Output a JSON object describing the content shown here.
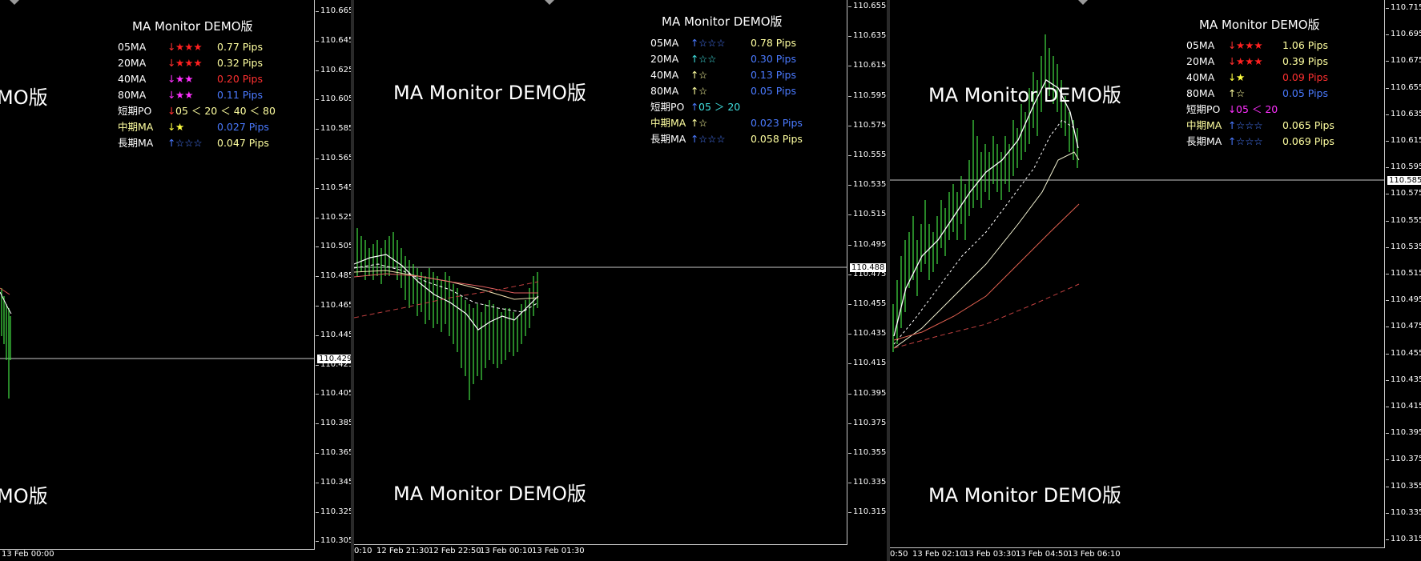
{
  "watermark_text": "MA Monitor DEMO版",
  "watermark_partial": "MO版",
  "panels": [
    {
      "title": "MA Monitor DEMO版",
      "rows": [
        {
          "label": "05MA",
          "arrow": "↓",
          "stars": "★★★",
          "value": "0.77 Pips",
          "label_color": "#ffffff",
          "arrow_color": "#ff3030",
          "stars_color": "#ff2020",
          "value_color": "#ffffa0"
        },
        {
          "label": "20MA",
          "arrow": "↓",
          "stars": "★★★",
          "value": "0.32 Pips",
          "label_color": "#ffffff",
          "arrow_color": "#ff3030",
          "stars_color": "#ff2020",
          "value_color": "#ffffa0"
        },
        {
          "label": "40MA",
          "arrow": "↓",
          "stars": "★★",
          "value": "0.20 Pips",
          "label_color": "#ffffff",
          "arrow_color": "#ff30ff",
          "stars_color": "#ff30ff",
          "value_color": "#ff3030"
        },
        {
          "label": "80MA",
          "arrow": "↓",
          "stars": "★★",
          "value": "0.11 Pips",
          "label_color": "#ffffff",
          "arrow_color": "#ff30ff",
          "stars_color": "#ff30ff",
          "value_color": "#4a7aff"
        },
        {
          "label": "短期PO",
          "arrow": "↓",
          "stars": "05 ＜ 20 ＜ 40 ＜ 80",
          "value": "",
          "label_color": "#ffffff",
          "arrow_color": "#ff3030",
          "stars_color": "#ffffa0",
          "value_color": "#ffffff"
        },
        {
          "label": "中期MA",
          "arrow": "↓",
          "stars": "★",
          "value": "0.027 Pips",
          "label_color": "#ffffa0",
          "arrow_color": "#ffff40",
          "stars_color": "#ffff40",
          "value_color": "#4a7aff"
        },
        {
          "label": "長期MA",
          "arrow": "↑",
          "stars": "☆☆☆",
          "value": "0.047 Pips",
          "label_color": "#ffffff",
          "arrow_color": "#4a7aff",
          "stars_color": "#4a7aff",
          "value_color": "#ffffa0"
        }
      ],
      "y_ticks": [
        "110.665",
        "110.645",
        "110.625",
        "110.605",
        "110.585",
        "110.565",
        "110.545",
        "110.525",
        "110.505",
        "110.485",
        "110.465",
        "110.445",
        "110.425",
        "110.405",
        "110.385",
        "110.365",
        "110.345",
        "110.325",
        "110.305"
      ],
      "current_price": "110.429",
      "x_ticks": [
        "13 Feb 00:00"
      ]
    },
    {
      "title": "MA Monitor DEMO版",
      "rows": [
        {
          "label": "05MA",
          "arrow": "↑",
          "stars": "☆☆☆",
          "value": "0.78 Pips",
          "label_color": "#ffffff",
          "arrow_color": "#4a7aff",
          "stars_color": "#4a7aff",
          "value_color": "#ffffa0"
        },
        {
          "label": "20MA",
          "arrow": "↑",
          "stars": "☆☆",
          "value": "0.30 Pips",
          "label_color": "#ffffff",
          "arrow_color": "#40e0e0",
          "stars_color": "#40e0e0",
          "value_color": "#4a7aff"
        },
        {
          "label": "40MA",
          "arrow": "↑",
          "stars": "☆",
          "value": "0.13 Pips",
          "label_color": "#ffffff",
          "arrow_color": "#ffffa0",
          "stars_color": "#ffffa0",
          "value_color": "#4a7aff"
        },
        {
          "label": "80MA",
          "arrow": "↑",
          "stars": "☆",
          "value": "0.05 Pips",
          "label_color": "#ffffff",
          "arrow_color": "#ffffa0",
          "stars_color": "#ffffa0",
          "value_color": "#4a7aff"
        },
        {
          "label": "短期PO",
          "arrow": "↑",
          "stars": "05 ＞ 20",
          "value": "",
          "label_color": "#ffffff",
          "arrow_color": "#4a7aff",
          "stars_color": "#40e0e0",
          "value_color": "#ffffff"
        },
        {
          "label": "中期MA",
          "arrow": "↑",
          "stars": "☆",
          "value": "0.023 Pips",
          "label_color": "#ffffa0",
          "arrow_color": "#ffffa0",
          "stars_color": "#ffffa0",
          "value_color": "#4a7aff"
        },
        {
          "label": "長期MA",
          "arrow": "↑",
          "stars": "☆☆☆",
          "value": "0.058 Pips",
          "label_color": "#ffffff",
          "arrow_color": "#4a7aff",
          "stars_color": "#4a7aff",
          "value_color": "#ffffa0"
        }
      ],
      "y_ticks": [
        "110.655",
        "110.635",
        "110.615",
        "110.595",
        "110.575",
        "110.555",
        "110.535",
        "110.515",
        "110.495",
        "110.475",
        "110.455",
        "110.435",
        "110.415",
        "110.395",
        "110.375",
        "110.355",
        "110.335",
        "110.315"
      ],
      "current_price": "110.488",
      "x_ticks": [
        "0:10",
        "12 Feb 21:30",
        "12 Feb 22:50",
        "13 Feb 00:10",
        "13 Feb 01:30"
      ]
    },
    {
      "title": "MA Monitor DEMO版",
      "rows": [
        {
          "label": "05MA",
          "arrow": "↓",
          "stars": "★★★",
          "value": "1.06 Pips",
          "label_color": "#ffffff",
          "arrow_color": "#ff3030",
          "stars_color": "#ff2020",
          "value_color": "#ffffa0"
        },
        {
          "label": "20MA",
          "arrow": "↓",
          "stars": "★★★",
          "value": "0.39 Pips",
          "label_color": "#ffffff",
          "arrow_color": "#ff3030",
          "stars_color": "#ff2020",
          "value_color": "#ffffa0"
        },
        {
          "label": "40MA",
          "arrow": "↓",
          "stars": "★",
          "value": "0.09 Pips",
          "label_color": "#ffffff",
          "arrow_color": "#ffff40",
          "stars_color": "#ffff40",
          "value_color": "#ff3030"
        },
        {
          "label": "80MA",
          "arrow": "↑",
          "stars": "☆",
          "value": "0.05 Pips",
          "label_color": "#ffffff",
          "arrow_color": "#ffffa0",
          "stars_color": "#ffffa0",
          "value_color": "#4a7aff"
        },
        {
          "label": "短期PO",
          "arrow": "↓",
          "stars": "05 ＜ 20",
          "value": "",
          "label_color": "#ffffff",
          "arrow_color": "#ff30ff",
          "stars_color": "#ff30ff",
          "value_color": "#ffffff"
        },
        {
          "label": "中期MA",
          "arrow": "↑",
          "stars": "☆☆☆",
          "value": "0.065 Pips",
          "label_color": "#ffffa0",
          "arrow_color": "#4a7aff",
          "stars_color": "#4a7aff",
          "value_color": "#ffffa0"
        },
        {
          "label": "長期MA",
          "arrow": "↑",
          "stars": "☆☆☆",
          "value": "0.069 Pips",
          "label_color": "#ffffff",
          "arrow_color": "#4a7aff",
          "stars_color": "#4a7aff",
          "value_color": "#ffffa0"
        }
      ],
      "y_ticks": [
        "110.715",
        "110.695",
        "110.675",
        "110.655",
        "110.635",
        "110.615",
        "110.595",
        "110.575",
        "110.555",
        "110.535",
        "110.515",
        "110.495",
        "110.475",
        "110.455",
        "110.435",
        "110.415",
        "110.395",
        "110.375",
        "110.355",
        "110.335",
        "110.315"
      ],
      "current_price": "110.585",
      "x_ticks": [
        "0:50",
        "13 Feb 02:10",
        "13 Feb 03:30",
        "13 Feb 04:50",
        "13 Feb 06:10"
      ]
    }
  ]
}
